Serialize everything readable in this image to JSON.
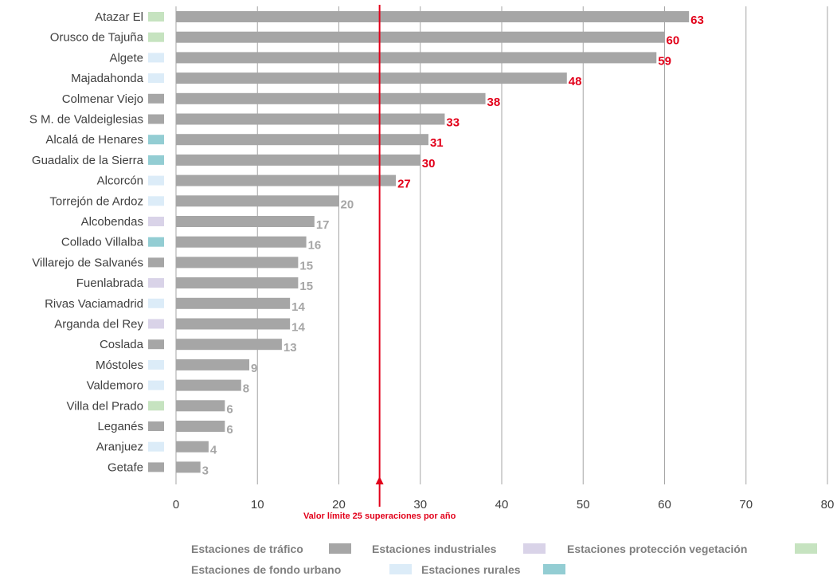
{
  "chart_data": {
    "type": "bar",
    "orientation": "horizontal",
    "categories": [
      "Atazar El",
      "Orusco de Tajuña",
      "Algete",
      "Majadahonda",
      "Colmenar Viejo",
      "S M. de Valdeiglesias",
      "Alcalá de Henares",
      "Guadalix de la Sierra",
      "Alcorcón",
      "Torrejón de Ardoz",
      "Alcobendas",
      "Collado Villalba",
      "Villarejo de Salvanés",
      "Fuenlabrada",
      "Rivas Vaciamadrid",
      "Arganda del Rey",
      "Coslada",
      "Móstoles",
      "Valdemoro",
      "Villa del Prado",
      "Leganés",
      "Aranjuez",
      "Getafe"
    ],
    "values": [
      63,
      60,
      59,
      48,
      38,
      33,
      31,
      30,
      27,
      20,
      17,
      16,
      15,
      15,
      14,
      14,
      13,
      9,
      8,
      6,
      6,
      4,
      3
    ],
    "station_types": [
      "proteccion_vegetacion",
      "proteccion_vegetacion",
      "fondo_urbano",
      "fondo_urbano",
      "trafico",
      "trafico",
      "rurales",
      "rurales",
      "fondo_urbano",
      "fondo_urbano",
      "industriales",
      "rurales",
      "trafico",
      "industriales",
      "fondo_urbano",
      "industriales",
      "trafico",
      "fondo_urbano",
      "fondo_urbano",
      "proteccion_vegetacion",
      "trafico",
      "fondo_urbano",
      "trafico"
    ],
    "xlim": [
      0,
      80
    ],
    "xticks": [
      0,
      10,
      20,
      30,
      40,
      50,
      60,
      70,
      80
    ],
    "grid": true,
    "bar_color": "#a6a6a6",
    "limit": {
      "value": 25,
      "label": "Valor límite 25 superaciones por año",
      "color": "#e2001a"
    },
    "value_label_colors": {
      "above_limit": "#e2001a",
      "below_limit": "#a6a6a6"
    },
    "legend": {
      "placement": "bottom",
      "items": [
        {
          "key": "trafico",
          "label": "Estaciones de tráfico",
          "color": "#a6a6a6"
        },
        {
          "key": "industriales",
          "label": "Estaciones industriales",
          "color": "#d9d3e8"
        },
        {
          "key": "proteccion_vegetacion",
          "label": "Estaciones protección vegetación",
          "color": "#c6e3c0"
        },
        {
          "key": "fondo_urbano",
          "label": "Estaciones de fondo urbano",
          "color": "#dcecf8"
        },
        {
          "key": "rurales",
          "label": "Estaciones rurales",
          "color": "#93cdd3"
        }
      ]
    }
  }
}
